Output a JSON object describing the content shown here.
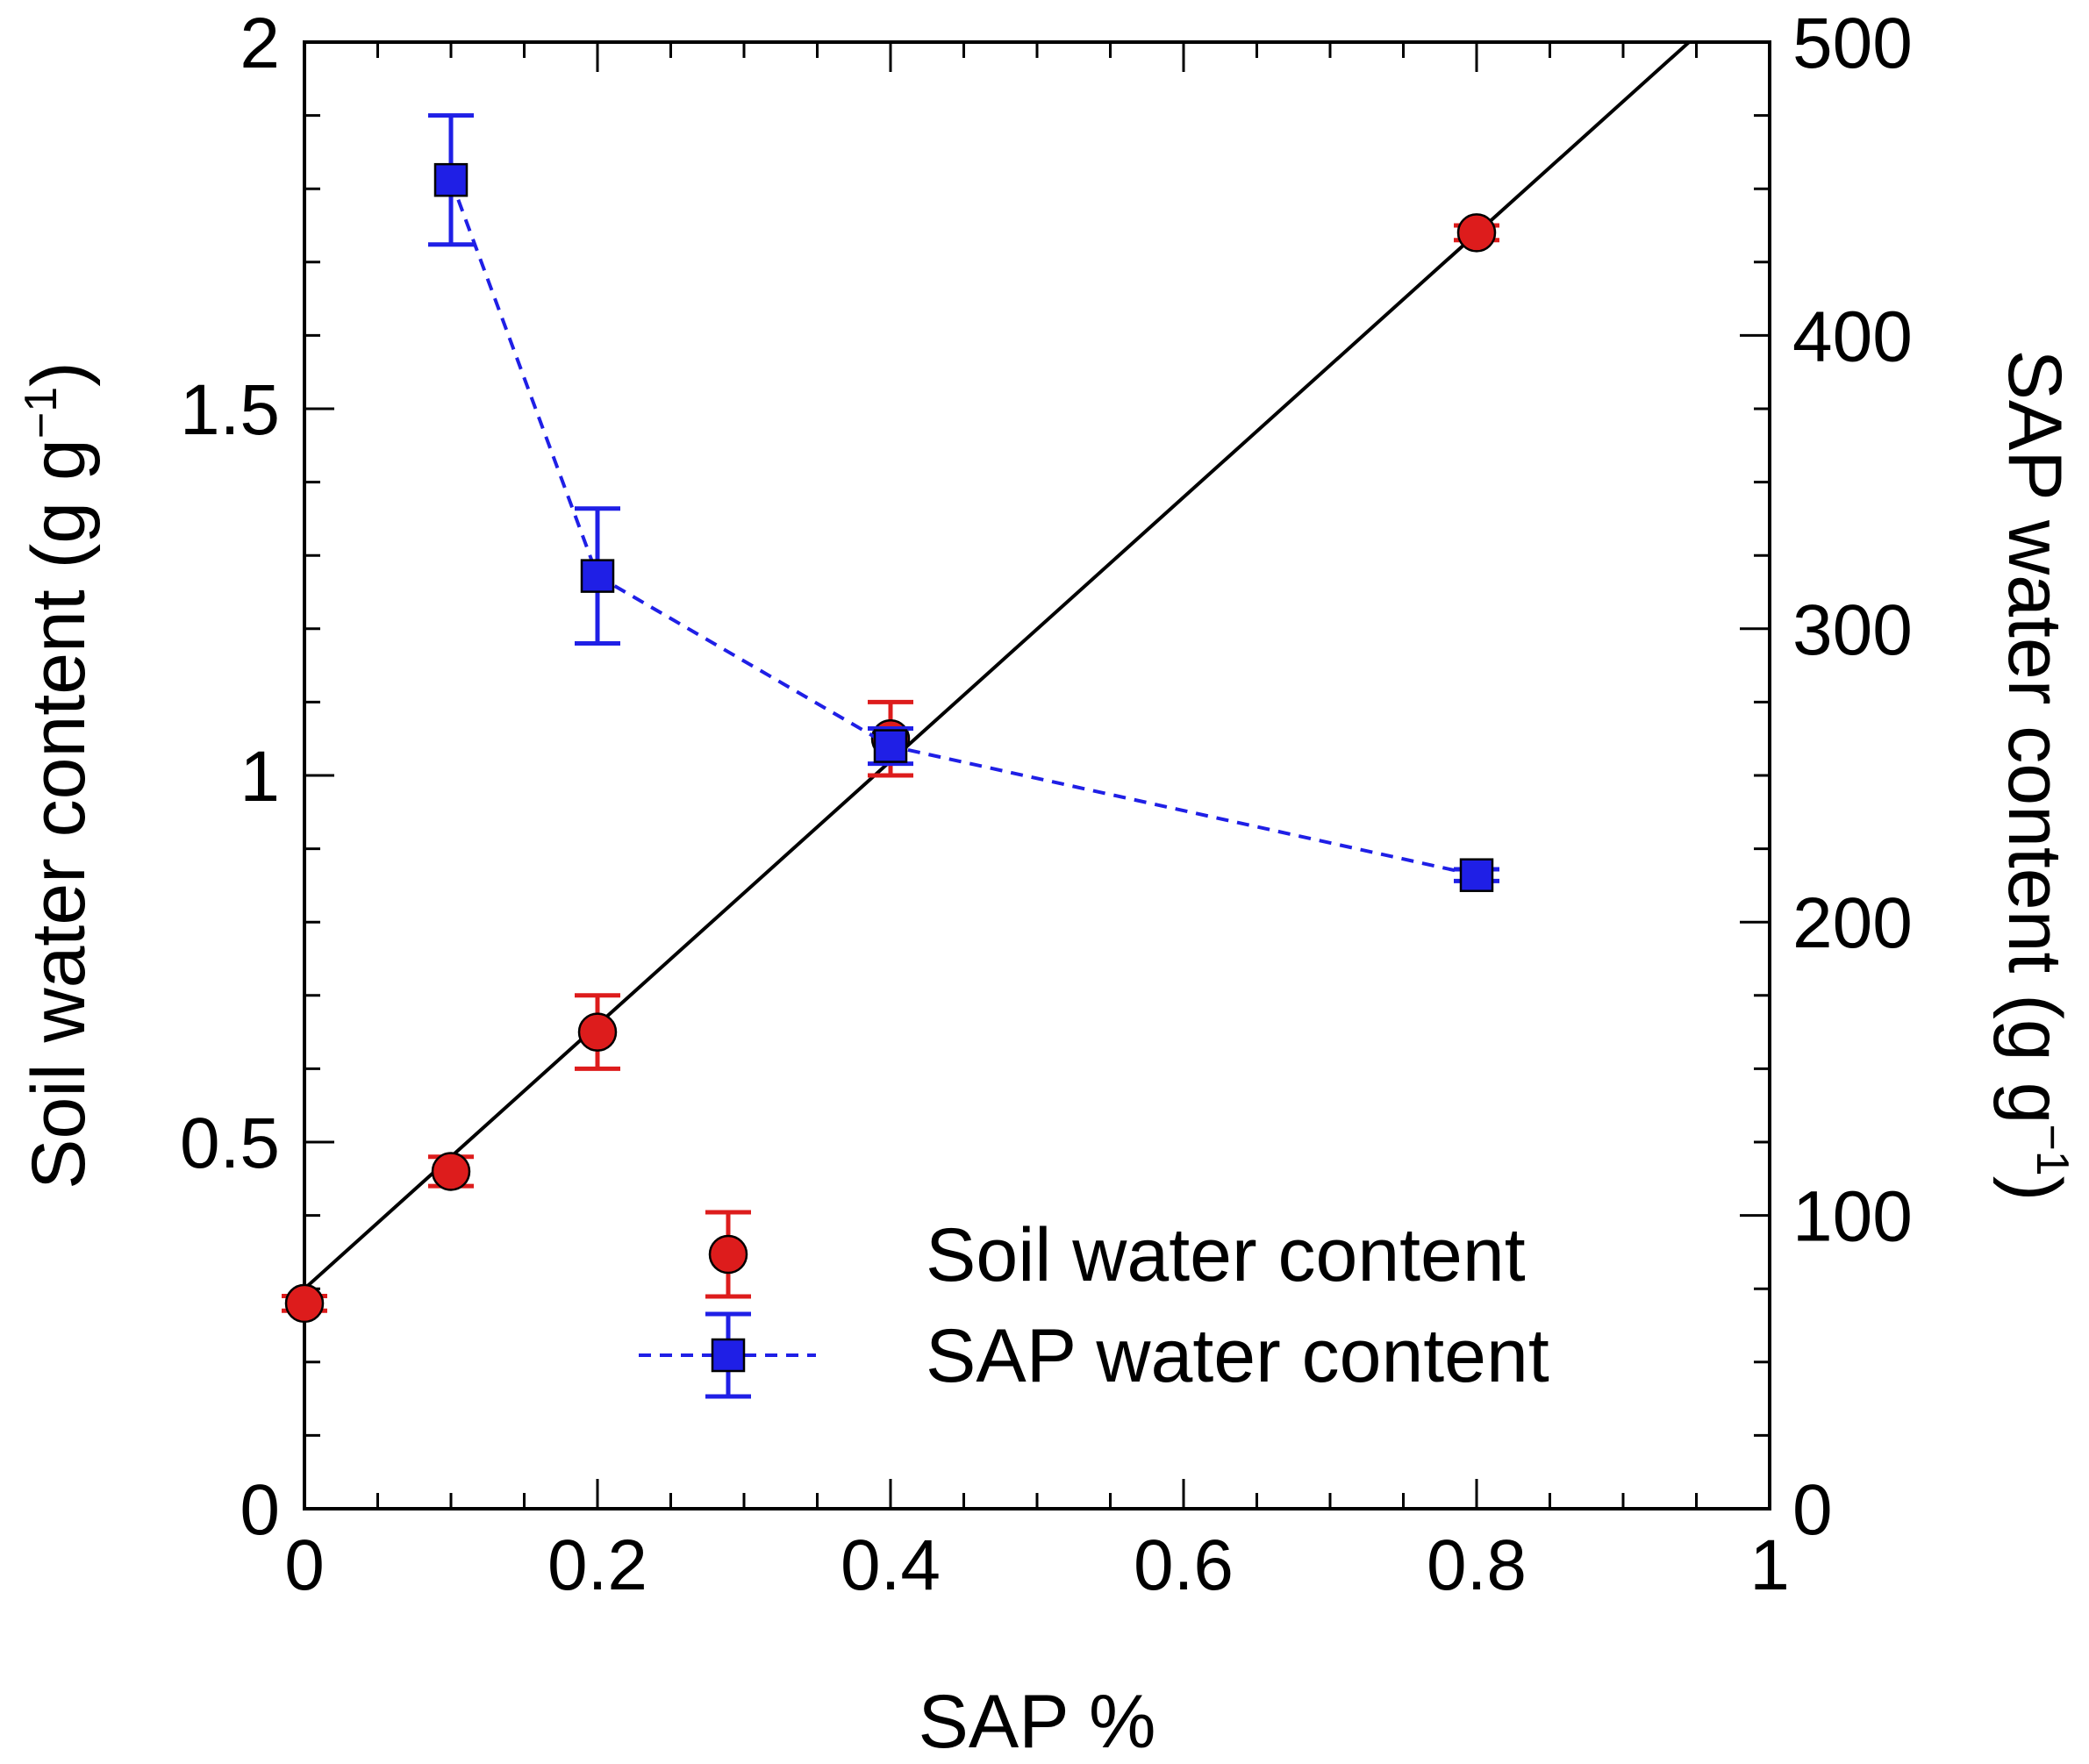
{
  "chart_data": {
    "type": "scatter",
    "xlabel": "SAP %",
    "ylabel_left": {
      "text": "Soil water content (g g",
      "sup": "−1",
      "close": ")"
    },
    "ylabel_right": {
      "text": "SAP water content (g g",
      "sup": "−1",
      "close": ")"
    },
    "xlim": [
      0,
      1
    ],
    "ylim_left": [
      0,
      2
    ],
    "ylim_right": [
      0,
      500
    ],
    "x_ticks": [
      "0",
      "0.2",
      "0.4",
      "0.6",
      "0.8",
      "1"
    ],
    "y_left_ticks": [
      "0",
      "0.5",
      "1",
      "1.5",
      "2"
    ],
    "y_right_ticks": [
      "0",
      "100",
      "200",
      "300",
      "400",
      "500"
    ],
    "series": [
      {
        "name": "Soil water content",
        "axis": "left",
        "marker": "circle",
        "color": "#dd1c1c",
        "x": [
          0,
          0.1,
          0.2,
          0.4,
          0.8
        ],
        "y": [
          0.28,
          0.46,
          0.65,
          1.05,
          1.74
        ],
        "err": [
          0.01,
          0.02,
          0.05,
          0.05,
          0.01
        ]
      },
      {
        "name": "SAP water content",
        "axis": "right",
        "marker": "square",
        "color": "#1f1fe6",
        "line": "dashed",
        "x": [
          0.1,
          0.2,
          0.4,
          0.8
        ],
        "y": [
          453,
          318,
          260,
          216
        ],
        "err": [
          22,
          23,
          6,
          2
        ]
      }
    ],
    "fit_line": {
      "axis": "left",
      "color": "#000000",
      "x": [
        0,
        0.945
      ],
      "y": [
        0.3,
        2.0
      ]
    },
    "legend": {
      "position": "bottom-right",
      "entries": [
        "Soil water content",
        "SAP water content"
      ]
    }
  }
}
